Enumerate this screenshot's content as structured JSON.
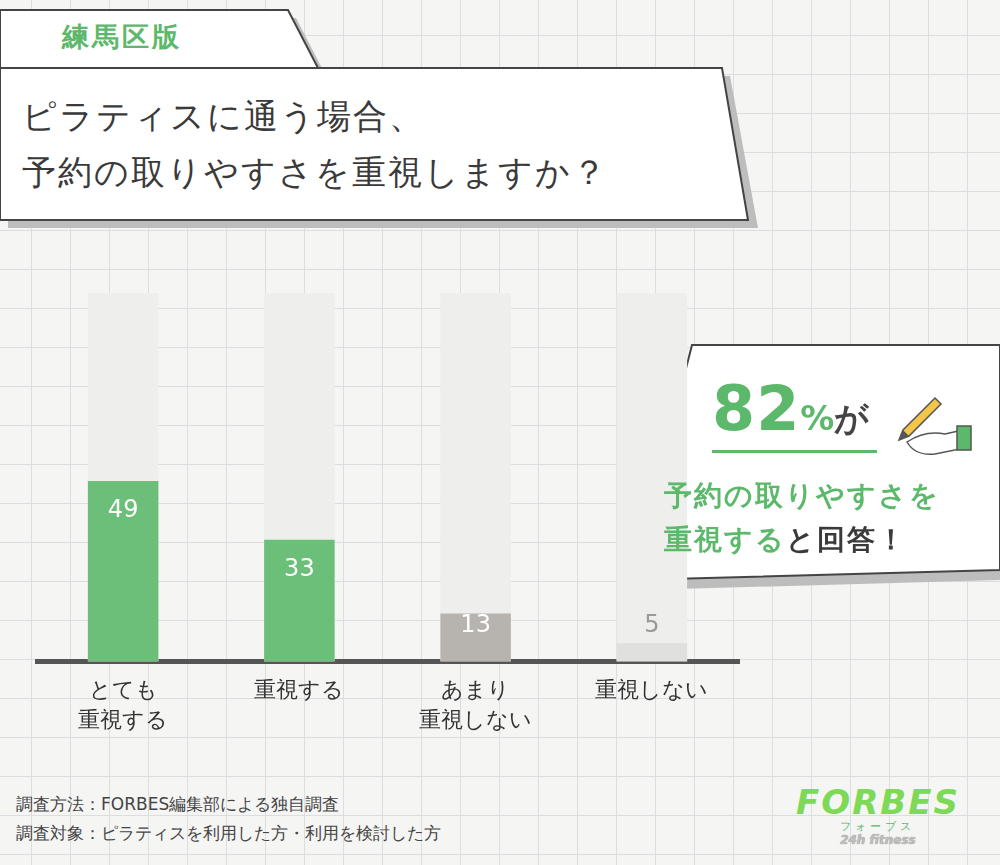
{
  "badge": "練馬区版",
  "chart_data": {
    "type": "bar",
    "title": "ピラティスに通う場合、\n予約の取りやすさを重視しますか？",
    "categories": [
      "とても\n重視する",
      "重視する",
      "あまり\n重視しない",
      "重視しない"
    ],
    "values": [
      49,
      33,
      13,
      5
    ],
    "colors": [
      "#6cbf78",
      "#6cbf78",
      "#b7b3af",
      "#e0e0de"
    ],
    "ylim": [
      0,
      100
    ],
    "grid": false,
    "data_labels": true,
    "tick_labels": "x",
    "annotation": {
      "headline": "82%が",
      "emphasis": "予約の取りやすさを\n重視する",
      "ending": "と回答！"
    }
  },
  "notes": [
    "調査方法：FORBES編集部による独自調査",
    "調査対象：ピラティスを利用した方・利用を検討した方"
  ],
  "logo": {
    "name": "FORBES",
    "reading": "フォーブス",
    "tagline": "24h fitness"
  }
}
